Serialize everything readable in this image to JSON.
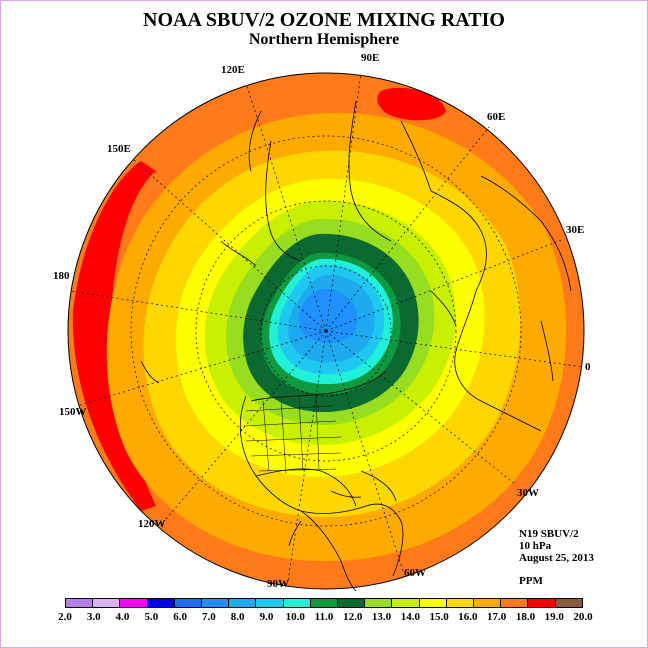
{
  "title": "NOAA SBUV/2 OZONE MIXING RATIO",
  "subtitle": "Northern Hemisphere",
  "longitude_labels": [
    "90E",
    "60E",
    "30E",
    "0",
    "30W",
    "60W",
    "90W",
    "120W",
    "150W",
    "180",
    "150E",
    "120E"
  ],
  "info": {
    "instrument": "N19 SBUV/2",
    "level": "10 hPa",
    "date": "August 25, 2013",
    "units": "PPM"
  },
  "colorbar": {
    "ticks": [
      "2.0",
      "3.0",
      "4.0",
      "5.0",
      "6.0",
      "7.0",
      "8.0",
      "9.0",
      "10.0",
      "11.0",
      "12.0",
      "13.0",
      "14.0",
      "15.0",
      "16.0",
      "17.0",
      "18.0",
      "19.0",
      "20.0"
    ],
    "colors": [
      "#b77ee8",
      "#dcb3f2",
      "#ff00ff",
      "#0000ee",
      "#1e6ff0",
      "#1e90ff",
      "#1eaaee",
      "#1ec8f0",
      "#20f0d8",
      "#109a40",
      "#0a6a30",
      "#98dd20",
      "#c8f000",
      "#ffff00",
      "#ffd700",
      "#ffaa00",
      "#ff7a18",
      "#ff0000",
      "#8b5a3c"
    ]
  },
  "map_colors": {
    "outer": "#ff7a18",
    "band_17": "#ffaa00",
    "band_16": "#ffd700",
    "band_15": "#ffff00",
    "band_14": "#c8f000",
    "band_13": "#98dd20",
    "band_12": "#0a6a30",
    "band_11": "#109a40",
    "band_10": "#20f0d8",
    "band_9": "#1ec8f0",
    "band_8": "#1eaaee",
    "band_7": "#1e90ff",
    "max": "#ff0000"
  }
}
